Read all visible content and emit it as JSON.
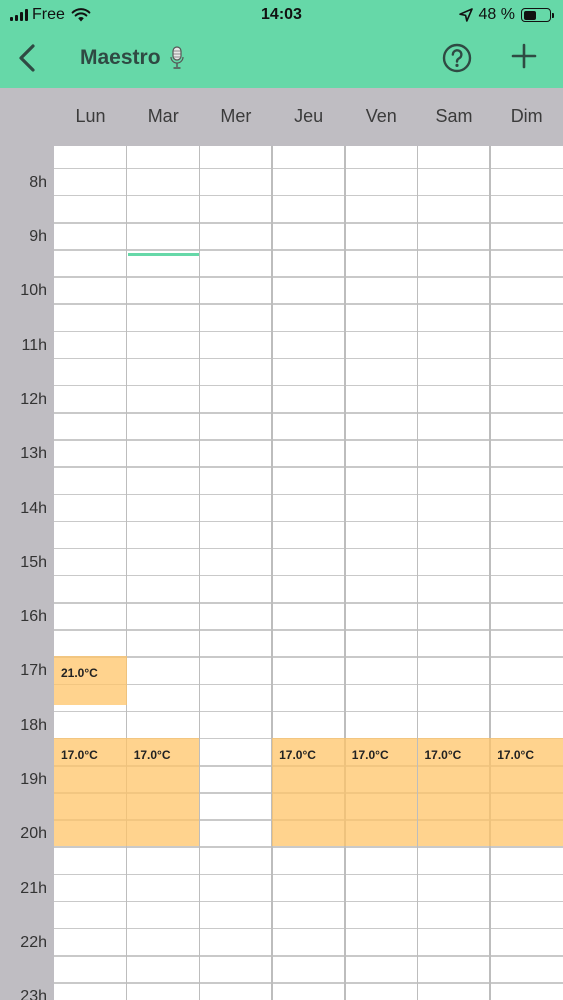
{
  "status_bar": {
    "carrier": "Free",
    "time": "14:03",
    "battery_percent": "48 %",
    "battery_level": 0.48
  },
  "nav": {
    "title": "Maestro",
    "back_icon": "chevron-left-icon",
    "title_icon": "microphone-icon",
    "help_icon": "question-circle-icon",
    "add_icon": "plus-icon"
  },
  "days": [
    "Lun",
    "Mar",
    "Mer",
    "Jeu",
    "Ven",
    "Sam",
    "Dim"
  ],
  "hours": [
    "8h",
    "9h",
    "10h",
    "11h",
    "12h",
    "13h",
    "14h",
    "15h",
    "16h",
    "17h",
    "18h",
    "19h",
    "20h",
    "21h",
    "22h",
    "23h"
  ],
  "schedule": {
    "start_hour": 7.6,
    "events": [
      {
        "day": 0,
        "start": 17.0,
        "end": 17.9,
        "label": "21.0°C"
      },
      {
        "day": 0,
        "start": 18.5,
        "end": 20.5,
        "label": "17.0°C"
      },
      {
        "day": 1,
        "start": 18.5,
        "end": 20.5,
        "label": "17.0°C"
      },
      {
        "day": 3,
        "start": 18.5,
        "end": 20.5,
        "label": "17.0°C"
      },
      {
        "day": 4,
        "start": 18.5,
        "end": 20.5,
        "label": "17.0°C"
      },
      {
        "day": 5,
        "start": 18.5,
        "end": 20.5,
        "label": "17.0°C"
      },
      {
        "day": 6,
        "start": 18.5,
        "end": 20.5,
        "label": "17.0°C"
      }
    ],
    "current_time_marker": {
      "day": 1,
      "hour": 9.6
    }
  },
  "colors": {
    "accent": "#66d8a8",
    "event": "#ffc468",
    "gutter": "#bfbdc2"
  }
}
